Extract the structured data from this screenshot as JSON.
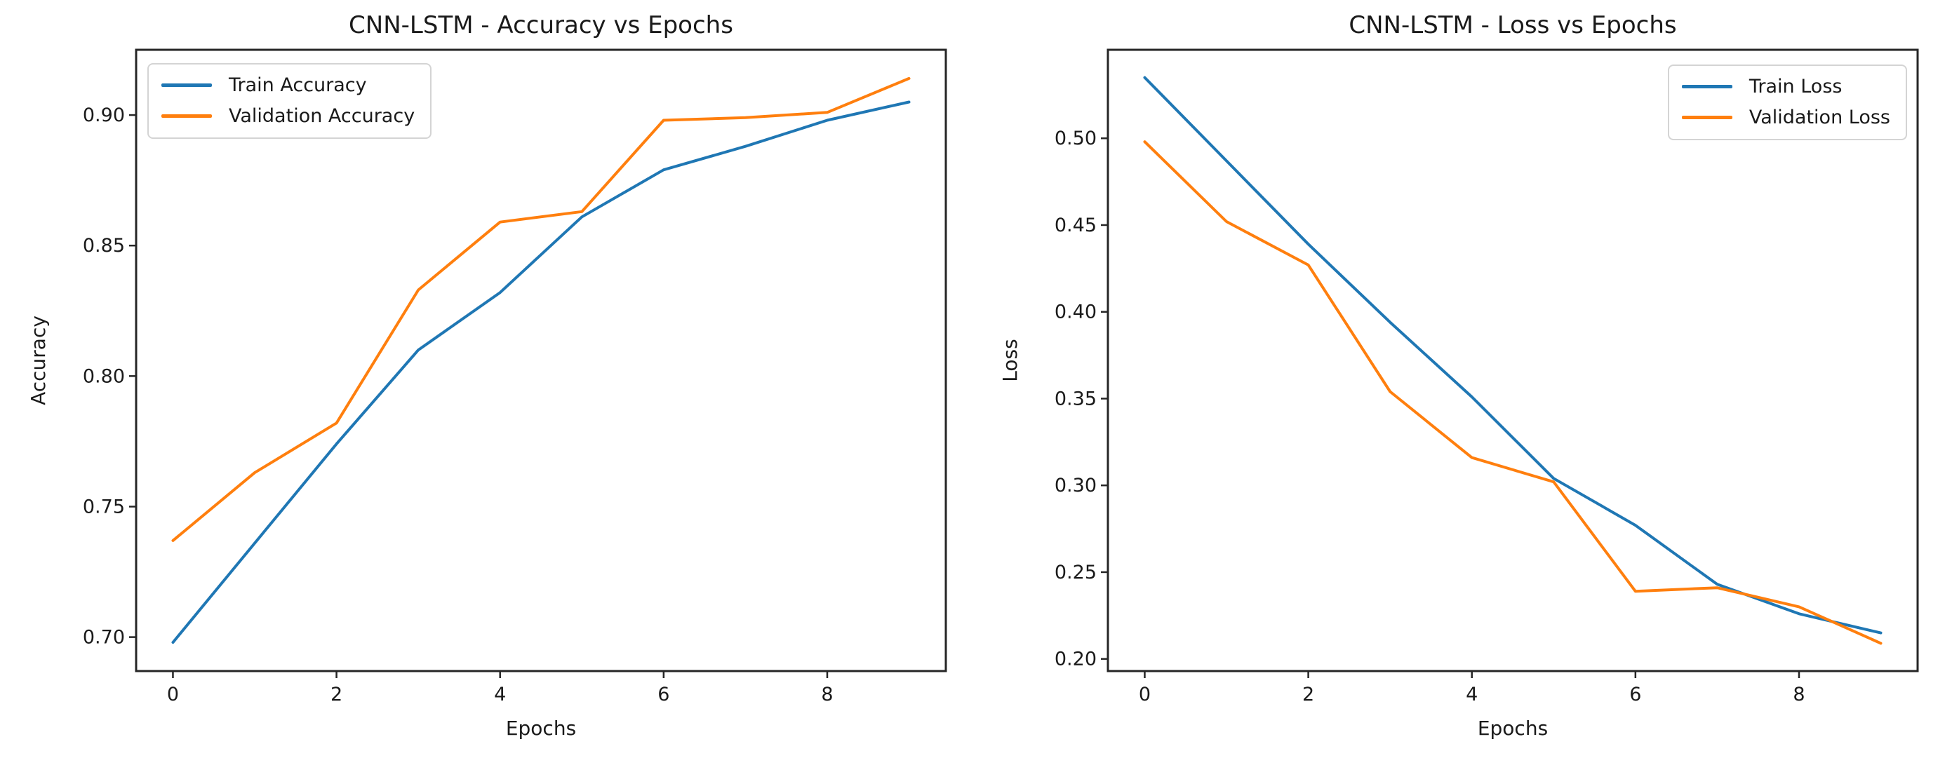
{
  "figure": {
    "background": "#ffffff",
    "spine_color": "#262626",
    "text_color": "#1a1a1a",
    "train_color": "#1f77b4",
    "validation_color": "#ff7f0e"
  },
  "chart_data": [
    {
      "type": "line",
      "title": "CNN-LSTM - Accuracy vs Epochs",
      "xlabel": "Epochs",
      "ylabel": "Accuracy",
      "x": [
        0,
        1,
        2,
        3,
        4,
        5,
        6,
        7,
        8,
        9
      ],
      "series": [
        {
          "name": "Train Accuracy",
          "color": "#1f77b4",
          "values": [
            0.698,
            0.736,
            0.774,
            0.81,
            0.832,
            0.861,
            0.879,
            0.888,
            0.898,
            0.905
          ]
        },
        {
          "name": "Validation Accuracy",
          "color": "#ff7f0e",
          "values": [
            0.737,
            0.763,
            0.782,
            0.833,
            0.859,
            0.863,
            0.898,
            0.899,
            0.901,
            0.914
          ]
        }
      ],
      "xticks": [
        0,
        2,
        4,
        6,
        8
      ],
      "yticks": [
        0.7,
        0.75,
        0.8,
        0.85,
        0.9
      ],
      "ytick_labels": [
        "0.70",
        "0.75",
        "0.80",
        "0.85",
        "0.90"
      ],
      "xlim": [
        -0.45,
        9.45
      ],
      "ylim": [
        0.687,
        0.925
      ],
      "grid": false,
      "legend_position": "upper-left"
    },
    {
      "type": "line",
      "title": "CNN-LSTM - Loss vs Epochs",
      "xlabel": "Epochs",
      "ylabel": "Loss",
      "x": [
        0,
        1,
        2,
        3,
        4,
        5,
        6,
        7,
        8,
        9
      ],
      "series": [
        {
          "name": "Train Loss",
          "color": "#1f77b4",
          "values": [
            0.535,
            0.487,
            0.439,
            0.394,
            0.351,
            0.304,
            0.277,
            0.243,
            0.226,
            0.215
          ]
        },
        {
          "name": "Validation Loss",
          "color": "#ff7f0e",
          "values": [
            0.498,
            0.452,
            0.427,
            0.354,
            0.316,
            0.302,
            0.239,
            0.241,
            0.23,
            0.209
          ]
        }
      ],
      "xticks": [
        0,
        2,
        4,
        6,
        8
      ],
      "yticks": [
        0.2,
        0.25,
        0.3,
        0.35,
        0.4,
        0.45,
        0.5
      ],
      "ytick_labels": [
        "0.20",
        "0.25",
        "0.30",
        "0.35",
        "0.40",
        "0.45",
        "0.50"
      ],
      "xlim": [
        -0.45,
        9.45
      ],
      "ylim": [
        0.193,
        0.551
      ],
      "grid": false,
      "legend_position": "upper-right"
    }
  ]
}
